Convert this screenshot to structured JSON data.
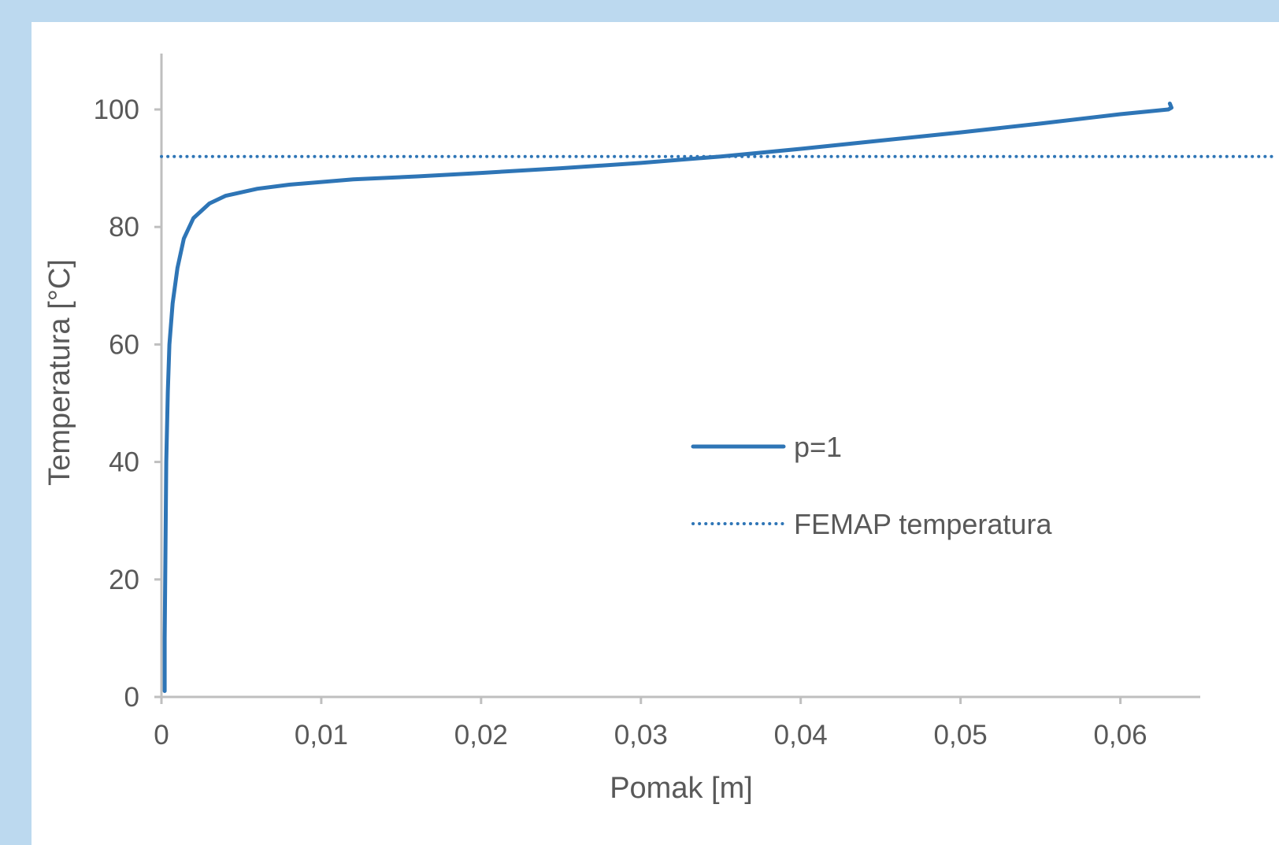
{
  "chart_data": {
    "type": "line",
    "xlabel": "Pomak [m]",
    "ylabel": "Temperatura [°C]",
    "xlim": [
      0,
      0.065
    ],
    "ylim": [
      0,
      110
    ],
    "x_ticks": [
      0,
      0.01,
      0.02,
      0.03,
      0.04,
      0.05,
      0.06
    ],
    "x_tick_labels": [
      "0",
      "0,01",
      "0,02",
      "0,03",
      "0,04",
      "0,05",
      "0,06"
    ],
    "y_ticks": [
      0,
      20,
      40,
      60,
      80,
      100
    ],
    "y_tick_labels": [
      "0",
      "20",
      "40",
      "60",
      "80",
      "100"
    ],
    "grid": false,
    "legend_position": "center-right",
    "series": [
      {
        "name": "p=1",
        "style": "solid",
        "color": "#2e75b6",
        "x": [
          0.0002,
          0.0002,
          0.00025,
          0.0003,
          0.0004,
          0.0005,
          0.0007,
          0.001,
          0.0014,
          0.002,
          0.003,
          0.004,
          0.006,
          0.008,
          0.012,
          0.016,
          0.02,
          0.025,
          0.03,
          0.035,
          0.04,
          0.045,
          0.05,
          0.055,
          0.06,
          0.063,
          0.0632,
          0.0631
        ],
        "y": [
          1,
          10,
          25,
          40,
          52,
          60,
          67,
          73,
          78,
          81.5,
          84,
          85.3,
          86.5,
          87.2,
          88.1,
          88.6,
          89.2,
          90,
          90.9,
          92,
          93.3,
          94.7,
          96.1,
          97.6,
          99.2,
          100,
          100.3,
          101
        ]
      },
      {
        "name": "FEMAP temperatura",
        "style": "dotted",
        "color": "#2e75b6",
        "x": [
          0,
          0.065
        ],
        "y": [
          92,
          92
        ]
      }
    ]
  }
}
